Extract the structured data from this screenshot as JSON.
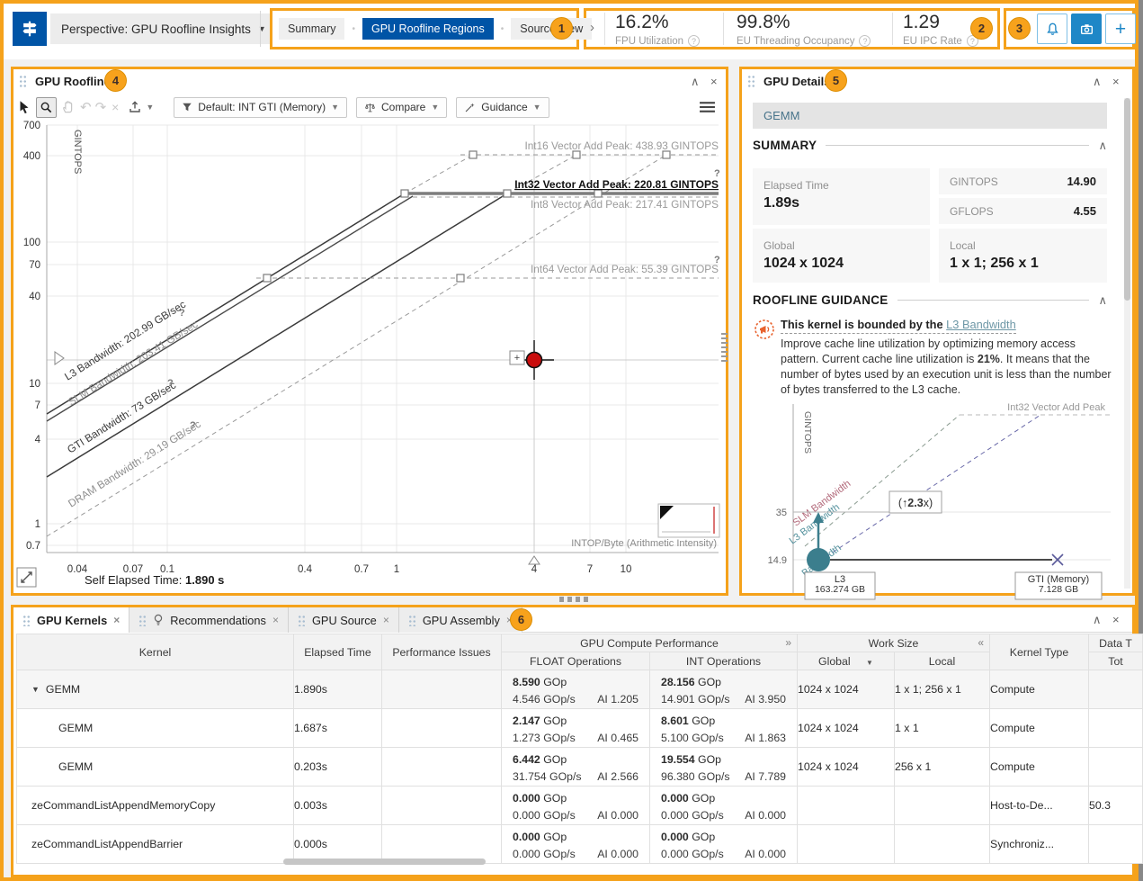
{
  "annotations": [
    "1",
    "2",
    "3",
    "4",
    "5",
    "6"
  ],
  "topbar": {
    "perspective_label": "Perspective: GPU Roofline Insights",
    "tabs": [
      "Summary",
      "GPU Roofline Regions",
      "Source View"
    ],
    "active_tab": "GPU Roofline Regions",
    "metrics": [
      {
        "value": "16.2%",
        "label": "FPU Utilization"
      },
      {
        "value": "99.8%",
        "label": "EU Threading Occupancy"
      },
      {
        "value": "1.29",
        "label": "EU IPC Rate"
      }
    ]
  },
  "roofline_panel": {
    "title": "GPU Roofline",
    "toolbar": {
      "filter_label": "Default: INT GTI (Memory)",
      "compare_label": "Compare",
      "guidance_label": "Guidance"
    },
    "self_elapsed_label": "Self Elapsed Time:",
    "self_elapsed_value": "1.890 s",
    "chart_data": {
      "type": "roofline",
      "xlabel": "INTOP/Byte (Arithmetic Intensity)",
      "ylabel": "GINTOPS",
      "x_ticks": [
        "0.04",
        "0.07",
        "0.1",
        "0.4",
        "0.7",
        "1",
        "4",
        "7",
        "10"
      ],
      "y_ticks": [
        "700",
        "400",
        "100",
        "70",
        "40",
        "10",
        "7",
        "4",
        "1",
        "0.7"
      ],
      "compute_roofs": [
        {
          "label": "Int16 Vector Add Peak: 438.93 GINTOPS",
          "gintops": 438.93
        },
        {
          "label": "Int32 Vector Add Peak: 220.81 GINTOPS",
          "gintops": 220.81,
          "selected": true
        },
        {
          "label": "Int8 Vector Add Peak: 217.41 GINTOPS",
          "gintops": 217.41
        },
        {
          "label": "Int64 Vector Add Peak: 55.39 GINTOPS",
          "gintops": 55.39
        }
      ],
      "memory_roofs": [
        {
          "label": "L3 Bandwidth: 202.99 GB/sec",
          "gb_per_sec": 202.99
        },
        {
          "label": "SLM Bandwidth: 203.41 GB/sec",
          "gb_per_sec": 203.41
        },
        {
          "label": "GTI Bandwidth: 73 GB/sec",
          "gb_per_sec": 73
        },
        {
          "label": "DRAM Bandwidth: 29.19 GB/sec",
          "gb_per_sec": 29.19
        }
      ],
      "points": [
        {
          "name": "GEMM",
          "x_intop_per_byte": 4,
          "y_gintops": 14.9
        }
      ]
    }
  },
  "details_panel": {
    "title": "GPU Details",
    "kernel_name": "GEMM",
    "summary": {
      "heading": "SUMMARY",
      "elapsed_label": "Elapsed Time",
      "elapsed_value": "1.89s",
      "gintops_label": "GINTOPS",
      "gintops_value": "14.90",
      "gflops_label": "GFLOPS",
      "gflops_value": "4.55",
      "global_label": "Global",
      "global_value": "1024 x 1024",
      "local_label": "Local",
      "local_value": "1 x 1; 256 x 1"
    },
    "guidance": {
      "heading": "ROOFLINE GUIDANCE",
      "title_prefix": "This kernel is bounded by the",
      "title_link": "L3 Bandwidth",
      "body_1": "Improve cache line utilization by optimizing memory access pattern. Current cache line utilization is ",
      "body_bold": "21%",
      "body_2": ". It means that the number of bytes used by an execution unit is less than the number of bytes transferred to the L3 cache."
    },
    "mini_chart": {
      "type": "roofline",
      "ylabel": "GINTOPS",
      "y_ticks": [
        "35",
        "14.9"
      ],
      "peak_label": "Int32 Vector Add Peak",
      "bandwidth_labels": {
        "slm": "SLM Bandwidth",
        "l3": "L3 Bandwidth",
        "partial": "Bandwidth"
      },
      "gain_prefix": "(↑",
      "gain_value": "2.3",
      "gain_suffix": "x)",
      "point": {
        "y_gintops": 14.9
      },
      "callouts": [
        {
          "title": "L3",
          "value": "163.274 GB"
        },
        {
          "title": "GTI (Memory)",
          "value": "7.128 GB"
        }
      ]
    }
  },
  "bottom_panel": {
    "tabs": [
      {
        "label": "GPU Kernels",
        "active": true
      },
      {
        "label": "Recommendations",
        "icon": "lightbulb"
      },
      {
        "label": "GPU Source"
      },
      {
        "label": "GPU Assembly"
      }
    ],
    "table": {
      "headers": {
        "kernel": "Kernel",
        "elapsed": "Elapsed Time",
        "perf_issues": "Performance Issues",
        "gpu_compute": "GPU Compute Performance",
        "float_ops": "FLOAT Operations",
        "int_ops": "INT Operations",
        "work_size": "Work Size",
        "global": "Global",
        "local": "Local",
        "kernel_type": "Kernel Type",
        "data_group": "Data T",
        "data_total": "Tot"
      },
      "units": {
        "gop": "GOp",
        "gops": "GOp/s",
        "ai": "AI"
      },
      "rows": [
        {
          "kernel": "GEMM",
          "expanded": true,
          "indent": 0,
          "shaded": true,
          "elapsed": "1.890s",
          "float": {
            "gop": "8.590",
            "gops": "4.546",
            "ai": "1.205"
          },
          "int": {
            "gop": "28.156",
            "gops": "14.901",
            "ai": "3.950"
          },
          "global": "1024 x 1024",
          "local": "1 x 1; 256 x 1",
          "type": "Compute",
          "data": ""
        },
        {
          "kernel": "GEMM",
          "indent": 1,
          "elapsed": "1.687s",
          "float": {
            "gop": "2.147",
            "gops": "1.273",
            "ai": "0.465"
          },
          "int": {
            "gop": "8.601",
            "gops": "5.100",
            "ai": "1.863"
          },
          "global": "1024 x 1024",
          "local": "1 x 1",
          "type": "Compute",
          "data": ""
        },
        {
          "kernel": "GEMM",
          "indent": 1,
          "elapsed": "0.203s",
          "float": {
            "gop": "6.442",
            "gops": "31.754",
            "ai": "2.566"
          },
          "int": {
            "gop": "19.554",
            "gops": "96.380",
            "ai": "7.789"
          },
          "global": "1024 x 1024",
          "local": "256 x 1",
          "type": "Compute",
          "data": ""
        },
        {
          "kernel": "zeCommandListAppendMemoryCopy",
          "indent": 0,
          "elapsed": "0.003s",
          "float": {
            "gop": "0.000",
            "gops": "0.000",
            "ai": "0.000"
          },
          "int": {
            "gop": "0.000",
            "gops": "0.000",
            "ai": "0.000"
          },
          "global": "",
          "local": "",
          "type": "Host-to-De...",
          "data": "50.3"
        },
        {
          "kernel": "zeCommandListAppendBarrier",
          "indent": 0,
          "elapsed": "0.000s",
          "float": {
            "gop": "0.000",
            "gops": "0.000",
            "ai": "0.000"
          },
          "int": {
            "gop": "0.000",
            "gops": "0.000",
            "ai": "0.000"
          },
          "global": "",
          "local": "",
          "type": "Synchroniz...",
          "data": ""
        }
      ]
    }
  }
}
